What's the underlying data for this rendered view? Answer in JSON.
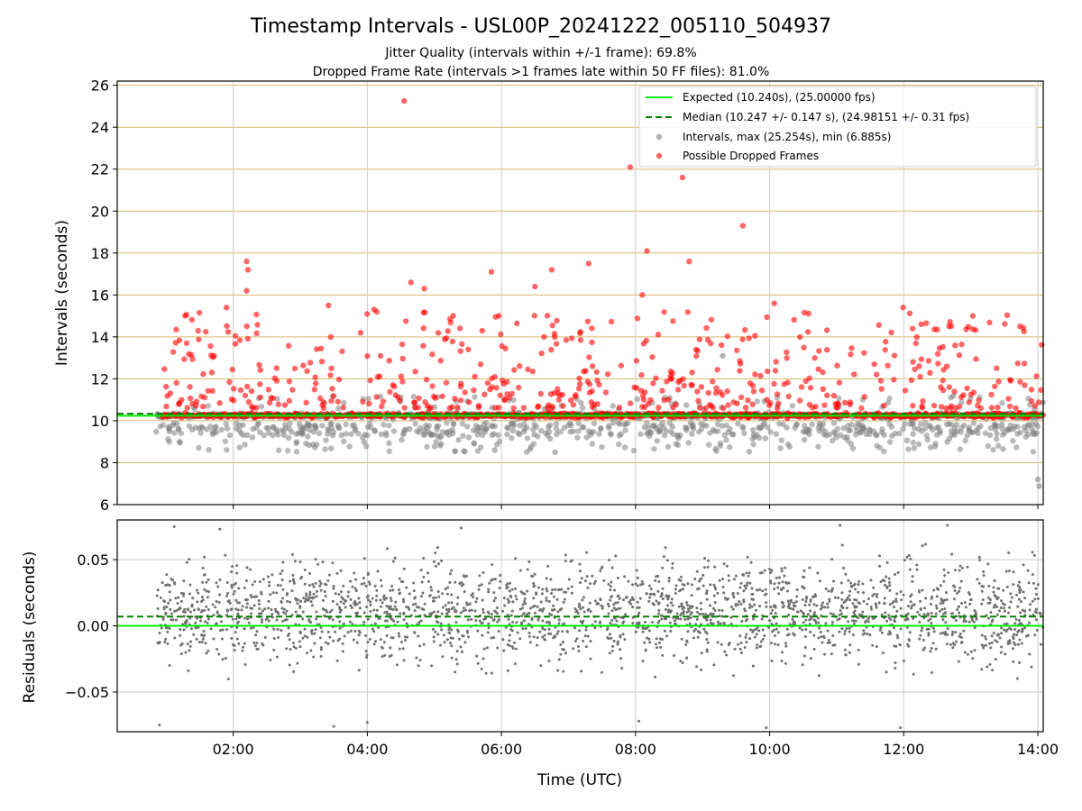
{
  "title": "Timestamp Intervals - USL00P_20241222_005110_504937",
  "subtitle_lines": [
    "Jitter Quality (intervals within +/-1 frame): 69.8%",
    "Dropped Frame Rate (intervals >1 frames late within 50 FF files): 81.0%"
  ],
  "colors": {
    "expected": "#00ee00",
    "median": "#008000",
    "interval_points": "#808080",
    "dropped_points": "#ff0000",
    "horizontal_grid": "#d4b96a",
    "vertical_grid": "#cccccc",
    "residual_points": "#707070"
  },
  "chart_data": [
    {
      "id": "intervals",
      "type": "scatter",
      "ylabel": "Intervals (seconds)",
      "xlim_hours": [
        0.27,
        14.08
      ],
      "ylim": [
        6,
        26.2
      ],
      "y_ticks": [
        "6",
        "8",
        "10",
        "12",
        "14",
        "16",
        "18",
        "20",
        "22",
        "24",
        "26"
      ],
      "y_tick_values": [
        6,
        8,
        10,
        12,
        14,
        16,
        18,
        20,
        22,
        24,
        26
      ],
      "grid": {
        "horizontal": true,
        "vertical": true
      },
      "legend_position": "top-right",
      "legend": [
        {
          "label": "Expected (10.240s), (25.00000 fps)",
          "marker": "solid-line",
          "color_key": "expected"
        },
        {
          "label": "Median (10.247 +/- 0.147 s), (24.98151 +/- 0.31 fps)",
          "marker": "dashed-line",
          "color_key": "median"
        },
        {
          "label": "Intervals, max (25.254s), min (6.885s)",
          "marker": "dot",
          "color_key": "interval_points"
        },
        {
          "label": "Possible Dropped Frames",
          "marker": "dot",
          "color_key": "dropped_points"
        }
      ],
      "expected_line": 10.24,
      "median_line": 10.247,
      "series": [
        {
          "name": "Intervals, max (25.254s), min (6.885s)",
          "stats": {
            "max": 25.254,
            "min": 6.885
          },
          "x_start_hour": 0.85,
          "x_end_hour": 14.08,
          "y_range": [
            8.5,
            11.2
          ],
          "notable_points": [
            {
              "x": 14.0,
              "y": 7.2
            },
            {
              "x": 14.02,
              "y": 6.885
            },
            {
              "x": 9.3,
              "y": 13.1
            },
            {
              "x": 1.2,
              "y": 9.0
            },
            {
              "x": 5.9,
              "y": 8.6
            },
            {
              "x": 6.8,
              "y": 8.5
            }
          ]
        },
        {
          "name": "Possible Dropped Frames",
          "x_start_hour": 0.95,
          "x_end_hour": 14.08,
          "y_range": [
            10.5,
            17.5
          ],
          "notable_points": [
            {
              "x": 4.55,
              "y": 25.254
            },
            {
              "x": 7.92,
              "y": 22.1
            },
            {
              "x": 8.17,
              "y": 18.1
            },
            {
              "x": 8.7,
              "y": 21.6
            },
            {
              "x": 9.6,
              "y": 19.3
            },
            {
              "x": 2.2,
              "y": 17.6
            },
            {
              "x": 2.22,
              "y": 17.2
            },
            {
              "x": 2.2,
              "y": 16.2
            },
            {
              "x": 5.85,
              "y": 17.1
            },
            {
              "x": 7.3,
              "y": 17.5
            },
            {
              "x": 6.75,
              "y": 17.2
            },
            {
              "x": 8.8,
              "y": 17.6
            },
            {
              "x": 4.65,
              "y": 16.6
            },
            {
              "x": 8.1,
              "y": 16.0
            },
            {
              "x": 6.5,
              "y": 16.4
            },
            {
              "x": 4.85,
              "y": 16.3
            },
            {
              "x": 10.07,
              "y": 15.6
            },
            {
              "x": 11.99,
              "y": 15.4
            },
            {
              "x": 1.9,
              "y": 15.4
            },
            {
              "x": 3.42,
              "y": 15.5
            },
            {
              "x": 4.1,
              "y": 15.3
            },
            {
              "x": 13.03,
              "y": 15.0
            }
          ]
        }
      ]
    },
    {
      "id": "residuals",
      "type": "scatter",
      "xlabel": "Time (UTC)",
      "ylabel": "Residuals (seconds)",
      "xlim_hours": [
        0.27,
        14.08
      ],
      "ylim": [
        -0.08,
        0.08
      ],
      "x_ticks": [
        "02:00",
        "04:00",
        "06:00",
        "08:00",
        "10:00",
        "12:00",
        "14:00"
      ],
      "x_tick_hours": [
        2,
        4,
        6,
        8,
        10,
        12,
        14
      ],
      "y_ticks": [
        "−0.05",
        "0.00",
        "0.05"
      ],
      "y_tick_values": [
        -0.05,
        0.0,
        0.05
      ],
      "grid": {
        "horizontal": true,
        "vertical": true
      },
      "zero_line": 0.0,
      "median_offset": 0.007,
      "series": [
        {
          "name": "",
          "x_start_hour": 0.85,
          "x_end_hour": 14.08,
          "y_range": [
            -0.078,
            0.077
          ],
          "notable_points": [
            {
              "x": 0.9,
              "y": -0.075
            },
            {
              "x": 1.12,
              "y": 0.075
            },
            {
              "x": 1.8,
              "y": 0.073
            },
            {
              "x": 5.4,
              "y": 0.074
            },
            {
              "x": 11.05,
              "y": 0.076
            },
            {
              "x": 12.65,
              "y": 0.076
            },
            {
              "x": 3.5,
              "y": -0.076
            },
            {
              "x": 4.0,
              "y": -0.073
            },
            {
              "x": 9.95,
              "y": -0.077
            },
            {
              "x": 11.95,
              "y": -0.077
            },
            {
              "x": 8.05,
              "y": -0.072
            }
          ]
        }
      ]
    }
  ]
}
